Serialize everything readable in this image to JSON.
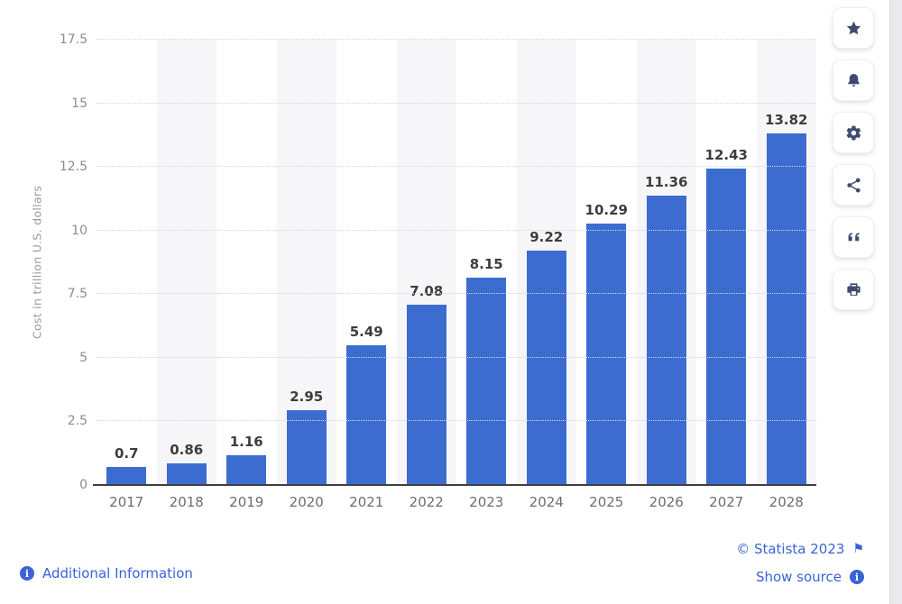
{
  "chart_data": {
    "type": "bar",
    "categories": [
      "2017",
      "2018",
      "2019",
      "2020",
      "2021",
      "2022",
      "2023",
      "2024",
      "2025",
      "2026",
      "2027",
      "2028"
    ],
    "values": [
      0.7,
      0.86,
      1.16,
      2.95,
      5.49,
      7.08,
      8.15,
      9.22,
      10.29,
      11.36,
      12.43,
      13.82
    ],
    "value_labels": [
      "0.7",
      "0.86",
      "1.16",
      "2.95",
      "5.49",
      "7.08",
      "8.15",
      "9.22",
      "10.29",
      "11.36",
      "12.43",
      "13.82"
    ],
    "title": "",
    "xlabel": "",
    "ylabel": "Cost in trillion U.S. dollars",
    "ylim": [
      0,
      17.5
    ],
    "yticks": [
      0,
      2.5,
      5,
      7.5,
      10,
      12.5,
      15,
      17.5
    ],
    "grid": "horizontal-dotted",
    "legend": "none",
    "bar_color": "#3d6cd1",
    "stripe_color": "#f6f6f8"
  },
  "toolbar": {
    "icon_color": "#3d4b6e",
    "buttons": [
      {
        "name": "favorite",
        "icon": "star-icon"
      },
      {
        "name": "notifications",
        "icon": "bell-icon"
      },
      {
        "name": "settings",
        "icon": "gear-icon"
      },
      {
        "name": "share",
        "icon": "share-icon"
      },
      {
        "name": "cite",
        "icon": "quote-icon"
      },
      {
        "name": "print",
        "icon": "printer-icon"
      }
    ]
  },
  "footer": {
    "additional_information": "Additional Information",
    "copyright": "© Statista 2023",
    "show_source": "Show source",
    "info_glyph": "i",
    "flag_glyph": "⚑",
    "link_color": "#3b62d8"
  }
}
